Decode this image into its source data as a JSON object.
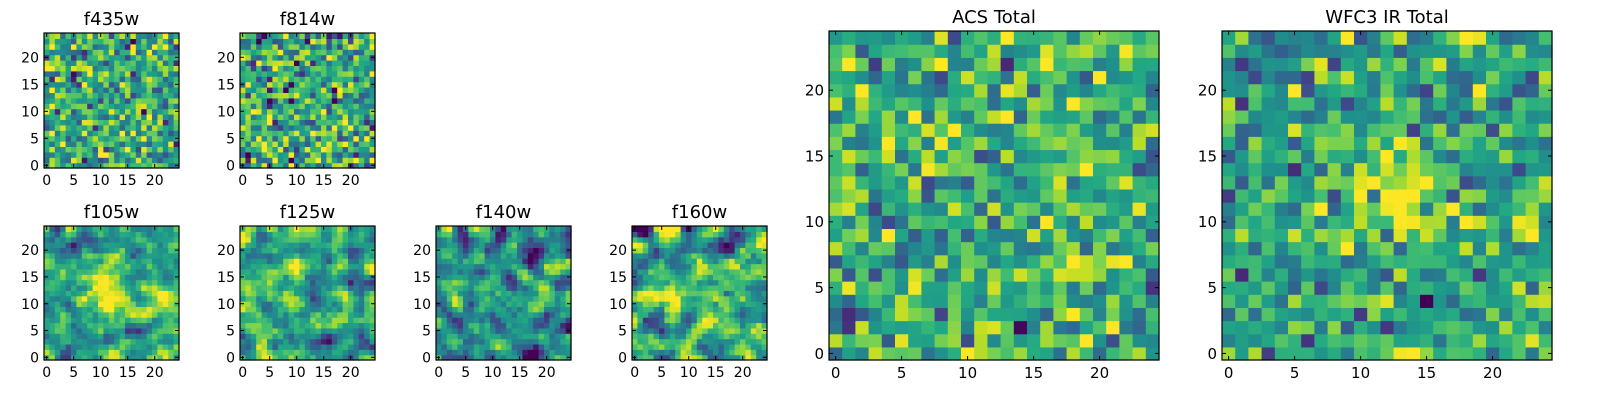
{
  "chart_data": [
    {
      "type": "heatmap",
      "title": "f435w",
      "colormap": "viridis",
      "grid_size": [
        25,
        25
      ],
      "xlim": [
        0,
        24
      ],
      "ylim": [
        0,
        24
      ],
      "xticks": [
        0,
        5,
        10,
        15,
        20
      ],
      "yticks": [
        0,
        5,
        10,
        15,
        20
      ],
      "grid": false,
      "pattern": "pixel-scale noise, mostly green/yellow with scattered dark pixels",
      "seed": 11,
      "mean": 0.62,
      "spread": 0.22,
      "smooth": 0
    },
    {
      "type": "heatmap",
      "title": "f814w",
      "colormap": "viridis",
      "grid_size": [
        25,
        25
      ],
      "xlim": [
        0,
        24
      ],
      "ylim": [
        0,
        24
      ],
      "xticks": [
        0,
        5,
        10,
        15,
        20
      ],
      "yticks": [
        0,
        5,
        10,
        15,
        20
      ],
      "grid": false,
      "pattern": "pixel-scale noise, mostly green/yellow with scattered dark pixels",
      "seed": 23,
      "mean": 0.6,
      "spread": 0.24,
      "smooth": 0
    },
    {
      "type": "heatmap",
      "title": "f105w",
      "colormap": "viridis",
      "grid_size": [
        25,
        25
      ],
      "xlim": [
        0,
        24
      ],
      "ylim": [
        0,
        24
      ],
      "xticks": [
        0,
        5,
        10,
        15,
        20
      ],
      "yticks": [
        0,
        5,
        10,
        15,
        20
      ],
      "grid": false,
      "pattern": "smoothed noise with a brighter yellow region near the centre",
      "seed": 37,
      "mean": 0.58,
      "spread": 0.26,
      "smooth": 1,
      "blob": {
        "x": 13,
        "y": 13,
        "radius": 5,
        "amplitude": 0.25
      }
    },
    {
      "type": "heatmap",
      "title": "f125w",
      "colormap": "viridis",
      "grid_size": [
        25,
        25
      ],
      "xlim": [
        0,
        24
      ],
      "ylim": [
        0,
        24
      ],
      "xticks": [
        0,
        5,
        10,
        15,
        20
      ],
      "yticks": [
        0,
        5,
        10,
        15,
        20
      ],
      "grid": false,
      "pattern": "smoothed noise, mostly yellow-green",
      "seed": 41,
      "mean": 0.6,
      "spread": 0.28,
      "smooth": 1
    },
    {
      "type": "heatmap",
      "title": "f140w",
      "colormap": "viridis",
      "grid_size": [
        25,
        25
      ],
      "xlim": [
        0,
        24
      ],
      "ylim": [
        0,
        24
      ],
      "xticks": [
        0,
        5,
        10,
        15,
        20
      ],
      "yticks": [
        0,
        5,
        10,
        15,
        20
      ],
      "grid": false,
      "pattern": "smoothed noise, more blue/teal with darker patches",
      "seed": 53,
      "mean": 0.5,
      "spread": 0.3,
      "smooth": 1
    },
    {
      "type": "heatmap",
      "title": "f160w",
      "colormap": "viridis",
      "grid_size": [
        25,
        25
      ],
      "xlim": [
        0,
        24
      ],
      "ylim": [
        0,
        24
      ],
      "xticks": [
        0,
        5,
        10,
        15,
        20
      ],
      "yticks": [
        0,
        5,
        10,
        15,
        20
      ],
      "grid": false,
      "pattern": "smoothed noise with blue patches and yellow streaks",
      "seed": 67,
      "mean": 0.55,
      "spread": 0.3,
      "smooth": 1
    },
    {
      "type": "heatmap",
      "title": "ACS Total",
      "colormap": "viridis",
      "grid_size": [
        25,
        25
      ],
      "xlim": [
        0,
        24
      ],
      "ylim": [
        0,
        24
      ],
      "xticks": [
        0,
        5,
        10,
        15,
        20
      ],
      "yticks": [
        0,
        5,
        10,
        15,
        20
      ],
      "grid": false,
      "pattern": "pixel-scale noise, green/yellow with a few dark purple pixels",
      "seed": 79,
      "mean": 0.64,
      "spread": 0.2,
      "smooth": 0
    },
    {
      "type": "heatmap",
      "title": "WFC3 IR Total",
      "colormap": "viridis",
      "grid_size": [
        25,
        25
      ],
      "xlim": [
        0,
        24
      ],
      "ylim": [
        0,
        24
      ],
      "xticks": [
        0,
        5,
        10,
        15,
        20
      ],
      "yticks": [
        0,
        5,
        10,
        15,
        20
      ],
      "grid": false,
      "pattern": "pixel-scale noise with a bright yellow source near the centre",
      "seed": 97,
      "mean": 0.57,
      "spread": 0.2,
      "smooth": 0,
      "blob": {
        "x": 13,
        "y": 12,
        "radius": 3,
        "amplitude": 0.35
      }
    }
  ]
}
